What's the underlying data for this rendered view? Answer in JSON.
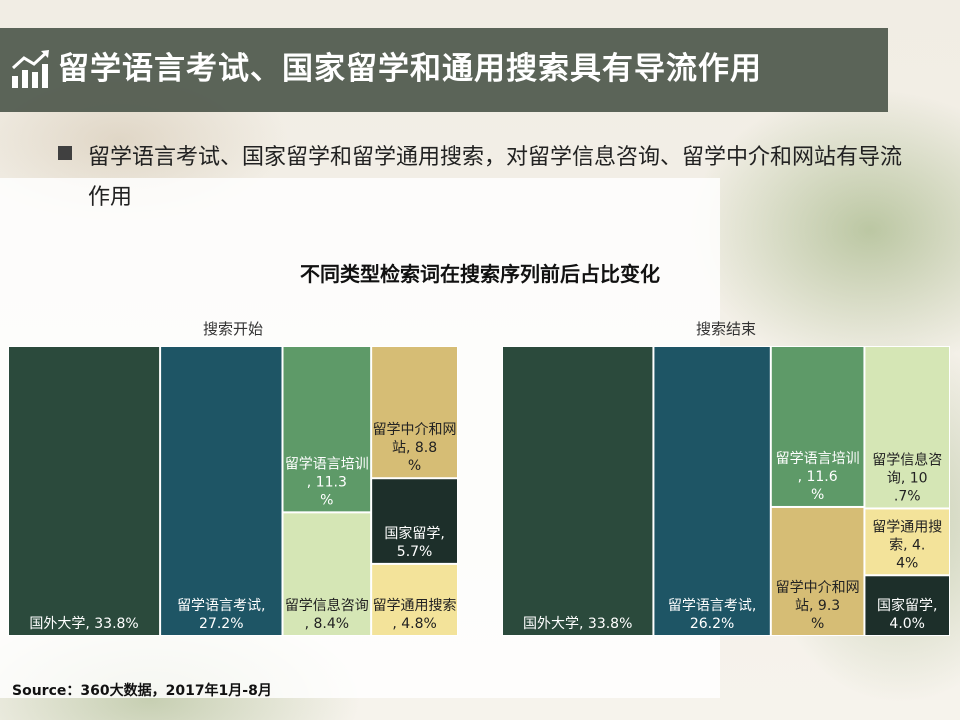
{
  "header": {
    "title": "留学语言考试、国家留学和通用搜索具有导流作用"
  },
  "bullet": {
    "text": "留学语言考试、国家留学和留学通用搜索，对留学信息咨询、留学中介和网站有导流作用"
  },
  "source": "Source：360大数据，2017年1月-8月",
  "chart_data": {
    "type": "treemap",
    "title": "不同类型检索词在搜索序列前后占比变化",
    "panels": [
      {
        "name": "搜索开始",
        "items": [
          {
            "label": "国外大学, 33.8%",
            "value": 33.8,
            "color": "#2b4a3c"
          },
          {
            "label": "留学语言考试, 27.2%",
            "value": 27.2,
            "color": "#1e5565"
          },
          {
            "label": "留学语言培训, 11.3%",
            "value": 11.3,
            "color": "#5e9a68"
          },
          {
            "label": "留学中介和网站, 8.8%",
            "value": 8.8,
            "color": "#d6bd75"
          },
          {
            "label": "留学信息咨询, 8.4%",
            "value": 8.4,
            "color": "#d5e6b5"
          },
          {
            "label": "国家留学, 5.7%",
            "value": 5.7,
            "color": "#1d2f2a"
          },
          {
            "label": "留学通用搜索, 4.8%",
            "value": 4.8,
            "color": "#f3e39a"
          }
        ]
      },
      {
        "name": "搜索结束",
        "items": [
          {
            "label": "国外大学, 33.8%",
            "value": 33.8,
            "color": "#2b4a3c"
          },
          {
            "label": "留学语言考试, 26.2%",
            "value": 26.2,
            "color": "#1e5565"
          },
          {
            "label": "留学语言培训, 11.6%",
            "value": 11.6,
            "color": "#5e9a68"
          },
          {
            "label": "留学信息咨询, 10.7%",
            "value": 10.7,
            "color": "#d5e6b5"
          },
          {
            "label": "留学中介和网站, 9.3%",
            "value": 9.3,
            "color": "#d6bd75"
          },
          {
            "label": "留学通用搜索, 4.4%",
            "value": 4.4,
            "color": "#f3e39a"
          },
          {
            "label": "国家留学, 4.0%",
            "value": 4.0,
            "color": "#1d2f2a"
          }
        ]
      }
    ]
  }
}
